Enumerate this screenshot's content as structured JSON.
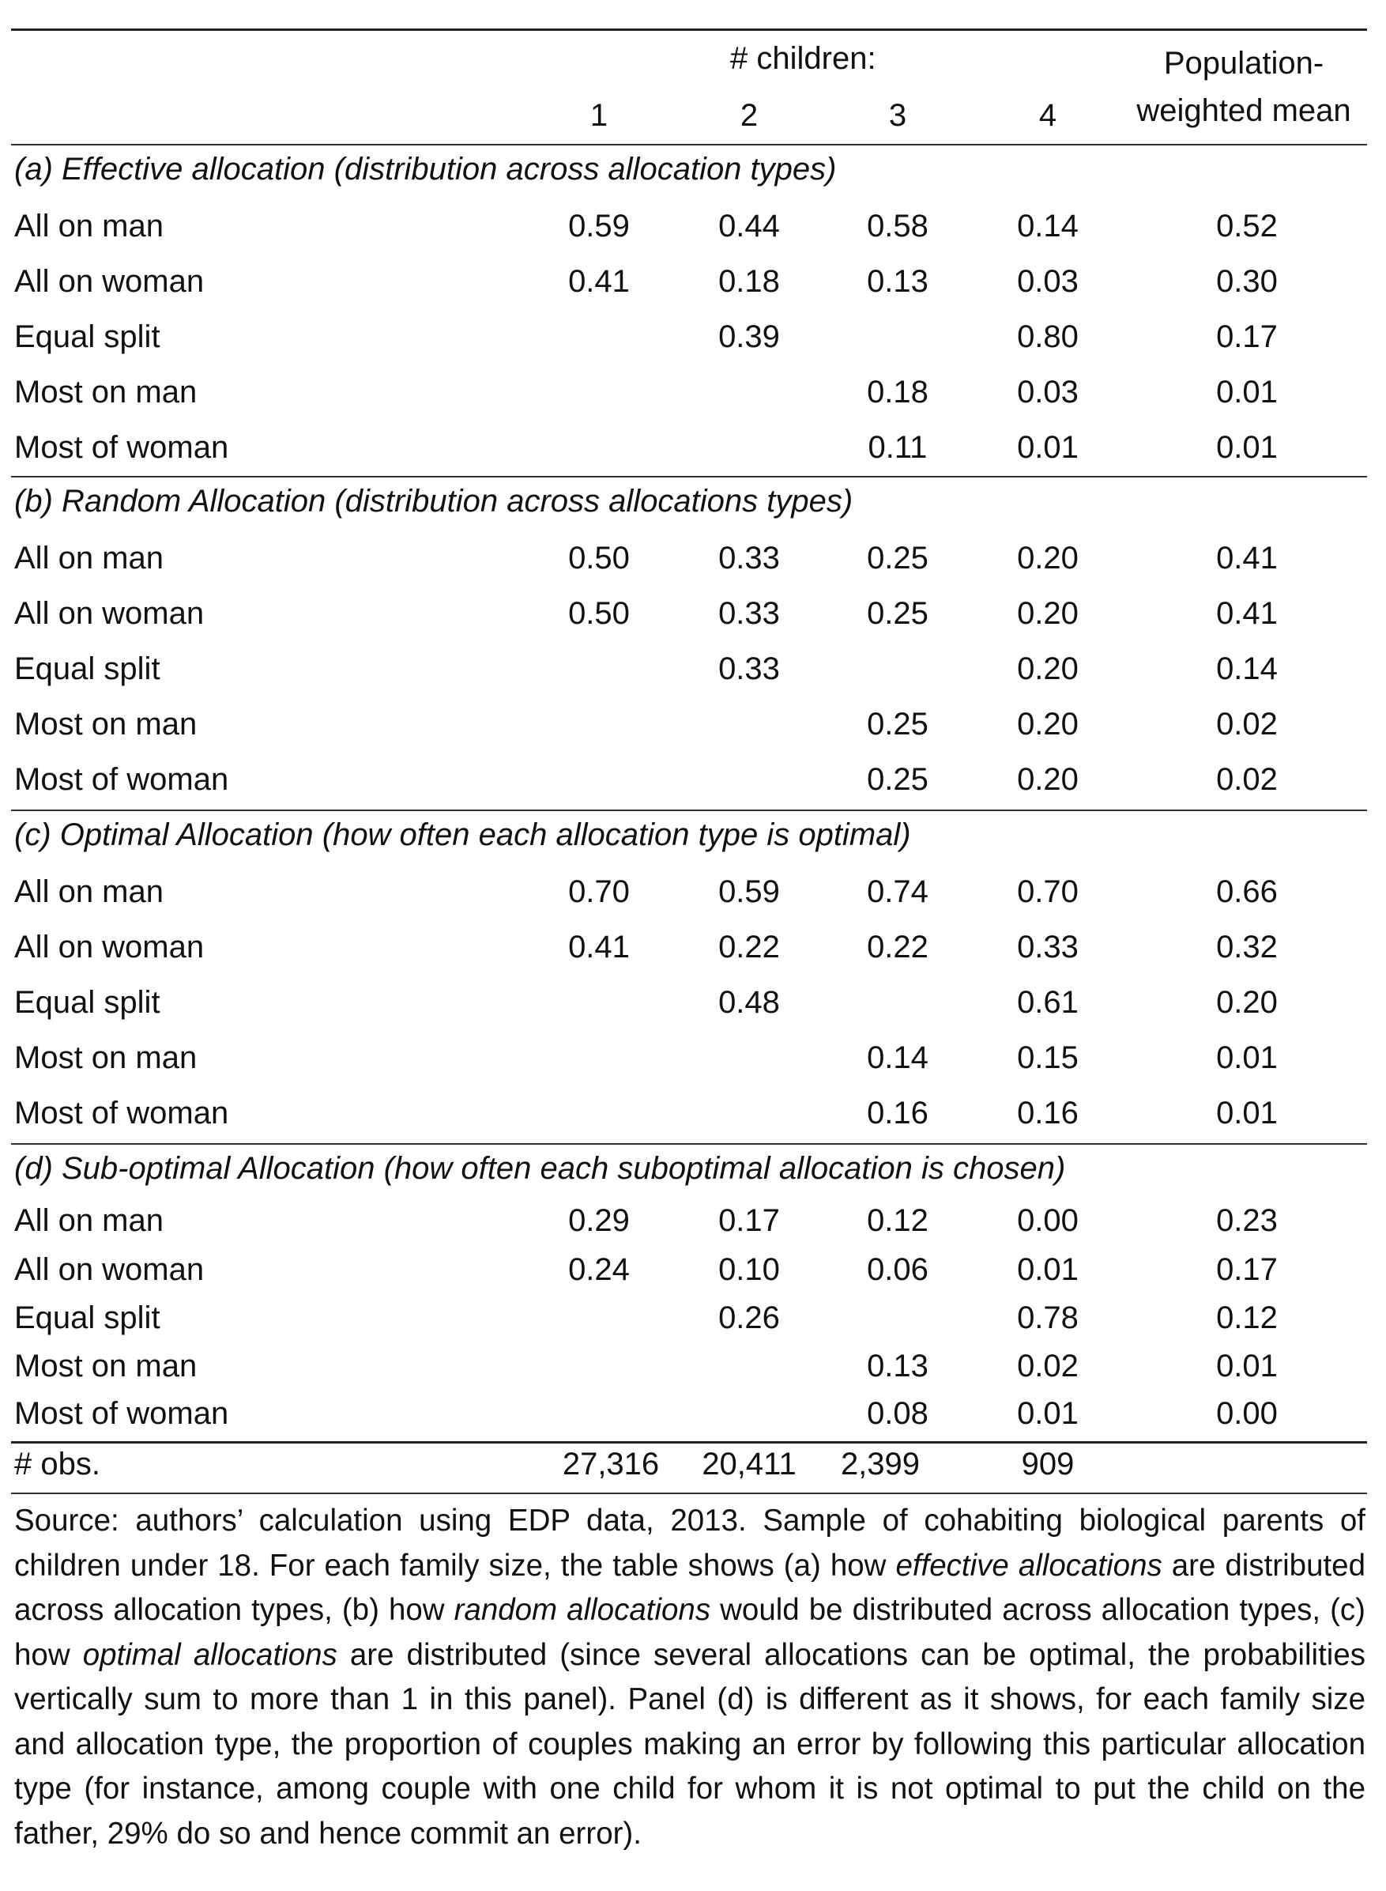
{
  "header": {
    "children_label": "# children:",
    "col1": "1",
    "col2": "2",
    "col3": "3",
    "col4": "4",
    "pop_line1": "Population-",
    "pop_line2": "weighted mean"
  },
  "panels": [
    {
      "title": "(a) Effective allocation (distribution across allocation types)",
      "rows": [
        {
          "label": "All on man",
          "v1": "0.59",
          "v2": "0.44",
          "v3": "0.58",
          "v4": "0.14",
          "mean": "0.52"
        },
        {
          "label": "All on woman",
          "v1": "0.41",
          "v2": "0.18",
          "v3": "0.13",
          "v4": "0.03",
          "mean": "0.30"
        },
        {
          "label": "Equal split",
          "v1": "",
          "v2": "0.39",
          "v3": "",
          "v4": "0.80",
          "mean": "0.17"
        },
        {
          "label": "Most on man",
          "v1": "",
          "v2": "",
          "v3": "0.18",
          "v4": "0.03",
          "mean": "0.01"
        },
        {
          "label": "Most of woman",
          "v1": "",
          "v2": "",
          "v3": "0.11",
          "v4": "0.01",
          "mean": "0.01"
        }
      ]
    },
    {
      "title": "(b) Random Allocation (distribution across allocations types)",
      "rows": [
        {
          "label": "All on man",
          "v1": "0.50",
          "v2": "0.33",
          "v3": "0.25",
          "v4": "0.20",
          "mean": "0.41"
        },
        {
          "label": "All on woman",
          "v1": "0.50",
          "v2": "0.33",
          "v3": "0.25",
          "v4": "0.20",
          "mean": "0.41"
        },
        {
          "label": "Equal split",
          "v1": "",
          "v2": "0.33",
          "v3": "",
          "v4": "0.20",
          "mean": "0.14"
        },
        {
          "label": "Most on man",
          "v1": "",
          "v2": "",
          "v3": "0.25",
          "v4": "0.20",
          "mean": "0.02"
        },
        {
          "label": "Most of woman",
          "v1": "",
          "v2": "",
          "v3": "0.25",
          "v4": "0.20",
          "mean": "0.02"
        }
      ]
    },
    {
      "title": "(c) Optimal Allocation (how often each allocation type is optimal)",
      "rows": [
        {
          "label": "All on man",
          "v1": "0.70",
          "v2": "0.59",
          "v3": "0.74",
          "v4": "0.70",
          "mean": "0.66"
        },
        {
          "label": "All on woman",
          "v1": "0.41",
          "v2": "0.22",
          "v3": "0.22",
          "v4": "0.33",
          "mean": "0.32"
        },
        {
          "label": "Equal split",
          "v1": "",
          "v2": "0.48",
          "v3": "",
          "v4": "0.61",
          "mean": "0.20"
        },
        {
          "label": "Most on man",
          "v1": "",
          "v2": "",
          "v3": "0.14",
          "v4": "0.15",
          "mean": "0.01"
        },
        {
          "label": "Most of woman",
          "v1": "",
          "v2": "",
          "v3": "0.16",
          "v4": "0.16",
          "mean": "0.01"
        }
      ]
    },
    {
      "title": "(d) Sub-optimal Allocation (how often each suboptimal allocation is chosen)",
      "rows": [
        {
          "label": "All on man",
          "v1": "0.29",
          "v2": "0.17",
          "v3": "0.12",
          "v4": "0.00",
          "mean": "0.23"
        },
        {
          "label": "All on woman",
          "v1": "0.24",
          "v2": "0.10",
          "v3": "0.06",
          "v4": "0.01",
          "mean": "0.17"
        },
        {
          "label": "Equal split",
          "v1": "",
          "v2": "0.26",
          "v3": "",
          "v4": "0.78",
          "mean": "0.12"
        },
        {
          "label": "Most on man",
          "v1": "",
          "v2": "",
          "v3": "0.13",
          "v4": "0.02",
          "mean": "0.01"
        },
        {
          "label": "Most of woman",
          "v1": "",
          "v2": "",
          "v3": "0.08",
          "v4": "0.01",
          "mean": "0.00"
        }
      ]
    }
  ],
  "obs": {
    "label": "# obs.",
    "v1": "27,316",
    "v2": "20,411",
    "v3": "2,399",
    "v4": "909"
  },
  "note": {
    "t1": "Source: authors’ calculation using EDP data, 2013. Sample of cohabiting biological parents of children under 18. For each family size, the table shows (a) how ",
    "e1": "effective allocations",
    "t2": " are distributed across allocation types, (b) how ",
    "e2": "random allocations",
    "t3": " would be distributed across allocation types, (c) how ",
    "e3": "optimal allocations",
    "t4": " are distributed (since several allocations can be optimal, the probabilities vertically sum to more than 1 in this panel). Panel (d) is different as it shows, for each family size and allocation type, the proportion of couples making an error by following this particular allocation type (for instance, among couple with one child for whom it is not optimal to put the child on the father, 29% do so and hence commit an error)."
  }
}
